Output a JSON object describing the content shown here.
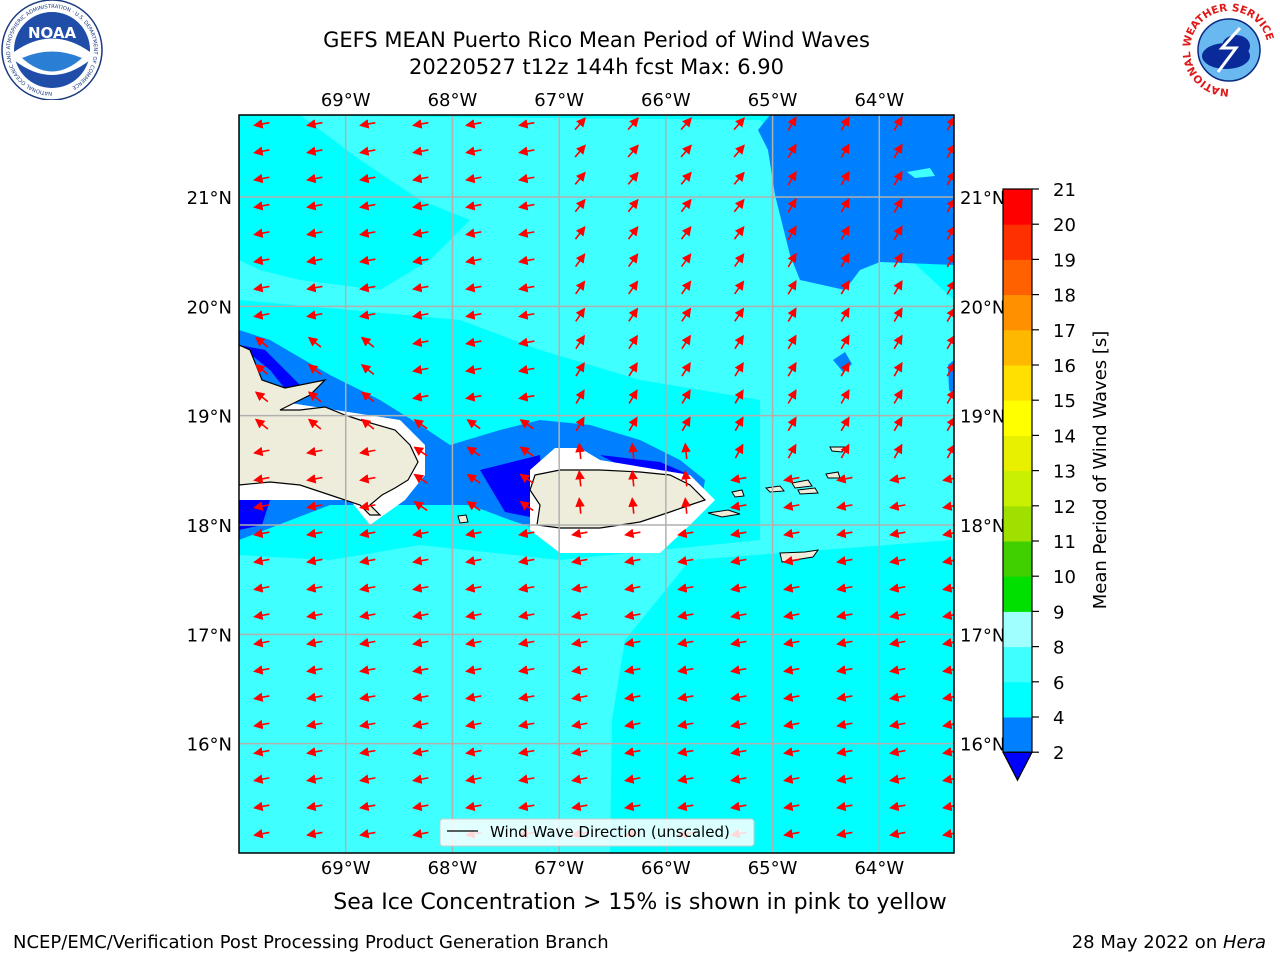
{
  "header": {
    "title_line1": "GEFS MEAN Puerto Rico Mean Period of Wind Waves",
    "title_line2": "20220527 t12z 144h fcst   Max: 6.90"
  },
  "logos": {
    "noaa": {
      "text": "NOAA",
      "ring_text": "NATIONAL OCEANIC AND ATMOSPHERIC ADMINISTRATION · U.S. DEPARTMENT OF COMMERCE"
    },
    "nws": {
      "ring_text": "NATIONAL WEATHER SERVICE"
    }
  },
  "map": {
    "lon_labels": [
      "69°W",
      "68°W",
      "67°W",
      "66°W",
      "65°W",
      "64°W"
    ],
    "lat_labels": [
      "21°N",
      "20°N",
      "19°N",
      "18°N",
      "17°N",
      "16°N"
    ],
    "lon_range": [
      -70.0,
      -63.3
    ],
    "lat_range": [
      15.0,
      21.75
    ],
    "legend_label": "Wind Wave Direction (unscaled)",
    "arrow_color": "#ff0000",
    "land_color": "#eeeddc"
  },
  "colorbar": {
    "label": "Mean Period of Wind Waves [s]",
    "ticks": [
      "2",
      "4",
      "6",
      "8",
      "9",
      "10",
      "11",
      "12",
      "13",
      "14",
      "15",
      "16",
      "17",
      "18",
      "19",
      "20",
      "21"
    ],
    "colors": [
      "#0080ff",
      "#00ffff",
      "#40ffff",
      "#a0ffff",
      "#50f080",
      "#00e000",
      "#40d000",
      "#a0e000",
      "#c8f000",
      "#e8f000",
      "#ffff00",
      "#ffe000",
      "#ffb800",
      "#ff9000",
      "#ff6000",
      "#ff3000",
      "#ff0000"
    ],
    "under_color": "#0000ff"
  },
  "caption": "Sea Ice Concentration > 15% is shown in pink to yellow",
  "footer": {
    "left": "NCEP/EMC/Verification Post Processing Product Generation Branch",
    "date": "28 May 2022 on ",
    "machine": "Hera"
  }
}
